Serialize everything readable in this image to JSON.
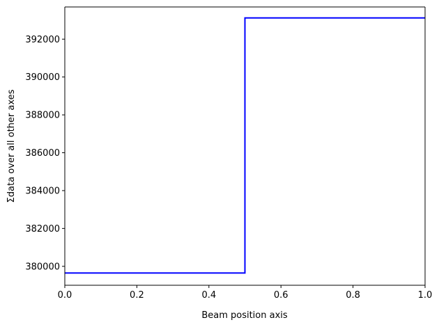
{
  "chart_data": {
    "type": "line",
    "drawstyle": "steps-post",
    "title": "",
    "xlabel": "Beam position axis",
    "ylabel": "Σdata over all other axes",
    "xlim": [
      0.0,
      1.0
    ],
    "ylim": [
      379000,
      393700
    ],
    "x_ticks": [
      0.0,
      0.2,
      0.4,
      0.6,
      0.8,
      1.0
    ],
    "x_tick_labels": [
      "0.0",
      "0.2",
      "0.4",
      "0.6",
      "0.8",
      "1.0"
    ],
    "y_ticks": [
      380000,
      382000,
      384000,
      386000,
      388000,
      390000,
      392000
    ],
    "y_tick_labels": [
      "380000",
      "382000",
      "384000",
      "386000",
      "388000",
      "390000",
      "392000"
    ],
    "grid": false,
    "legend": "none",
    "series": [
      {
        "color": "#0000ff",
        "x": [
          0.0,
          0.5,
          1.0
        ],
        "y": [
          379650,
          393120,
          393120
        ]
      }
    ],
    "marker_line": {
      "x": 0.0,
      "color": "#ff0000"
    }
  }
}
